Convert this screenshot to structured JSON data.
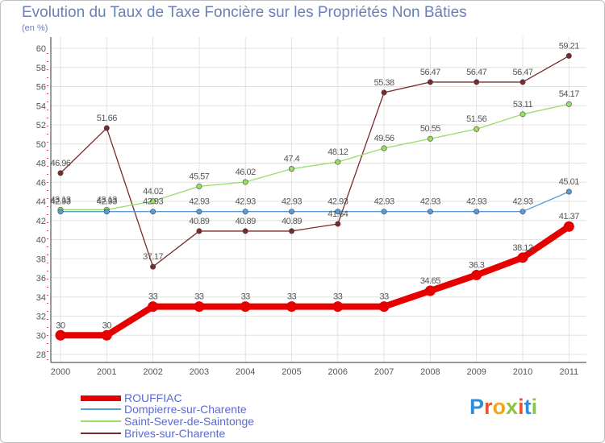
{
  "header": {
    "title": "Evolution du Taux de Taxe Foncière sur les Propriétés Non Bâties",
    "subtitle": "(en %)"
  },
  "logo": {
    "text": "Proxiti",
    "letters": [
      "P",
      "r",
      "o",
      "x",
      "i",
      "t",
      "i"
    ],
    "colors": [
      "#2e8fd8",
      "#e9542c",
      "#f4a31c",
      "#8cc63f",
      "#e9542c",
      "#2e8fd8",
      "#8cc63f"
    ]
  },
  "chart_data": {
    "type": "line",
    "title": "Evolution du Taux de Taxe Foncière sur les Propriétés Non Bâties",
    "ylabel": "(en %)",
    "xlabel": "",
    "categories": [
      "2000",
      "2001",
      "2002",
      "2003",
      "2004",
      "2005",
      "2006",
      "2007",
      "2008",
      "2009",
      "2010",
      "2011"
    ],
    "ylim": [
      28,
      60
    ],
    "yticks": [
      28,
      30,
      32,
      34,
      36,
      38,
      40,
      42,
      44,
      46,
      48,
      50,
      52,
      54,
      56,
      58,
      60
    ],
    "grid": true,
    "legend_position": "bottom-left",
    "series": [
      {
        "name": "ROUFFIAC",
        "color": "#e60000",
        "values": [
          30,
          30,
          33,
          33,
          33,
          33,
          33,
          33,
          34.65,
          36.3,
          38.12,
          41.37
        ],
        "labels": [
          "30",
          "30",
          "33",
          "33",
          "33",
          "33",
          "33",
          "33",
          "34.65",
          "36.3",
          "38.12",
          "41.37"
        ]
      },
      {
        "name": "Dompierre-sur-Charente",
        "color": "#5b9bd5",
        "values": [
          42.93,
          42.93,
          42.93,
          42.93,
          42.93,
          42.93,
          42.93,
          42.93,
          42.93,
          42.93,
          42.93,
          45.01
        ],
        "labels": [
          "42.93",
          "42.93",
          "42.93",
          "42.93",
          "42.93",
          "42.93",
          "42.93",
          "42.93",
          "42.93",
          "42.93",
          "42.93",
          "45.01"
        ]
      },
      {
        "name": "Saint-Sever-de-Saintonge",
        "color": "#99dd66",
        "values": [
          43.13,
          43.13,
          44.02,
          45.57,
          46.02,
          47.4,
          48.12,
          49.56,
          50.55,
          51.56,
          53.11,
          54.17
        ],
        "labels": [
          "43.13",
          "43.13",
          "44.02",
          "45.57",
          "46.02",
          "47.4",
          "48.12",
          "49.56",
          "50.55",
          "51.56",
          "53.11",
          "54.17"
        ]
      },
      {
        "name": "Brives-sur-Charente",
        "color": "#7a2a2a",
        "values": [
          46.96,
          51.66,
          37.17,
          40.89,
          40.89,
          40.89,
          41.64,
          55.38,
          56.47,
          56.47,
          56.47,
          59.21
        ],
        "labels": [
          "46.96",
          "51.66",
          "37.17",
          "40.89",
          "40.89",
          "40.89",
          "41.64",
          "55.38",
          "56.47",
          "56.47",
          "56.47",
          "59.21"
        ]
      }
    ]
  }
}
